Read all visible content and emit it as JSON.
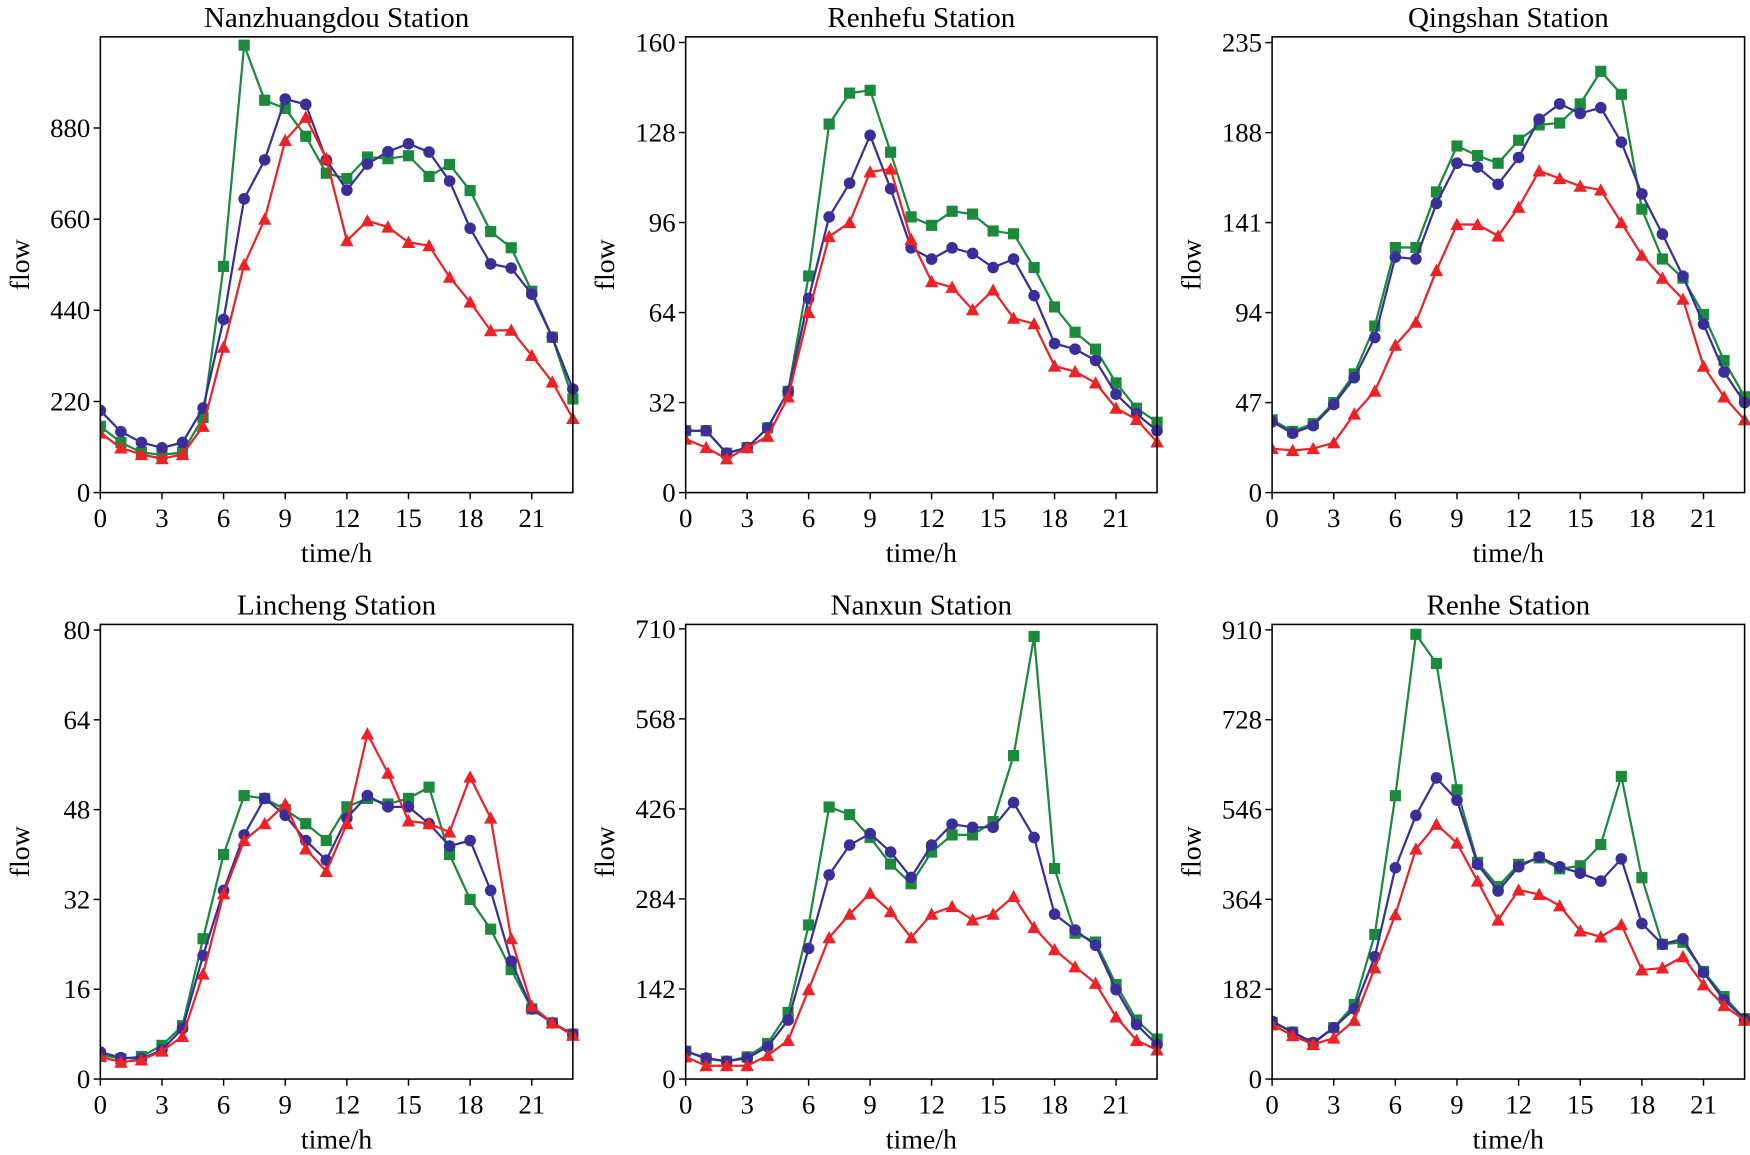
{
  "chart_data": [
    {
      "type": "line",
      "title": "Nanzhuangdou Station",
      "xlabel": "time/h",
      "ylabel": "flow",
      "xlim": [
        0,
        23
      ],
      "ylim": [
        0,
        1100
      ],
      "xticks": [
        "0",
        "3",
        "6",
        "9",
        "12",
        "15",
        "18",
        "21"
      ],
      "yticks": [
        "0",
        "220",
        "440",
        "660",
        "880"
      ],
      "x": [
        0,
        1,
        2,
        3,
        4,
        5,
        6,
        7,
        8,
        9,
        10,
        11,
        12,
        13,
        14,
        15,
        16,
        17,
        18,
        19,
        20,
        21,
        22,
        23
      ],
      "series": [
        {
          "color": "#1b8a3c",
          "marker": "square",
          "values": [
            160,
            121,
            97,
            91,
            97,
            181,
            546,
            1080,
            947,
            927,
            860,
            771,
            758,
            810,
            806,
            813,
            763,
            792,
            729,
            630,
            591,
            486,
            375,
            226
          ]
        },
        {
          "color": "#3a2f98",
          "marker": "circle",
          "values": [
            198,
            147,
            121,
            108,
            121,
            204,
            418,
            709,
            803,
            950,
            937,
            803,
            730,
            793,
            823,
            842,
            822,
            752,
            638,
            552,
            542,
            479,
            375,
            250
          ]
        },
        {
          "color": "#ec2227",
          "marker": "triangle",
          "values": [
            144,
            108,
            92,
            82,
            92,
            160,
            351,
            550,
            660,
            850,
            906,
            806,
            608,
            656,
            641,
            604,
            596,
            520,
            460,
            391,
            392,
            331,
            267,
            179
          ]
        }
      ]
    },
    {
      "type": "line",
      "title": "Renhefu Station",
      "xlabel": "time/h",
      "ylabel": "flow",
      "xlim": [
        0,
        23
      ],
      "ylim": [
        0,
        162
      ],
      "xticks": [
        "0",
        "3",
        "6",
        "9",
        "12",
        "15",
        "18",
        "21"
      ],
      "yticks": [
        "0",
        "32",
        "64",
        "96",
        "128",
        "160"
      ],
      "x": [
        0,
        1,
        2,
        3,
        4,
        5,
        6,
        7,
        8,
        9,
        10,
        11,
        12,
        13,
        14,
        15,
        16,
        17,
        18,
        19,
        20,
        21,
        22,
        23
      ],
      "series": [
        {
          "color": "#1b8a3c",
          "marker": "square",
          "values": [
            22,
            22,
            14,
            16,
            23,
            36,
            77,
            131,
            142,
            143,
            121,
            98,
            95,
            100,
            99,
            93,
            92,
            80,
            66,
            57,
            51,
            39,
            30,
            25
          ]
        },
        {
          "color": "#3a2f98",
          "marker": "circle",
          "values": [
            22,
            22,
            14,
            16,
            23,
            36,
            69,
            98,
            110,
            127,
            108,
            87,
            83,
            87,
            85,
            80,
            83,
            70,
            53,
            51,
            47,
            35,
            28,
            22
          ]
        },
        {
          "color": "#ec2227",
          "marker": "triangle",
          "values": [
            19,
            16,
            12,
            16,
            20,
            34,
            64,
            91,
            96,
            114,
            115,
            90,
            75,
            73,
            65,
            72,
            62,
            60,
            45,
            43,
            39,
            30,
            26,
            18
          ]
        }
      ]
    },
    {
      "type": "line",
      "title": "Qingshan Station",
      "xlabel": "time/h",
      "ylabel": "flow",
      "xlim": [
        0,
        23
      ],
      "ylim": [
        0,
        238
      ],
      "xticks": [
        "0",
        "3",
        "6",
        "9",
        "12",
        "15",
        "18",
        "21"
      ],
      "yticks": [
        "0",
        "47",
        "94",
        "141",
        "188",
        "235"
      ],
      "x": [
        0,
        1,
        2,
        3,
        4,
        5,
        6,
        7,
        8,
        9,
        10,
        11,
        12,
        13,
        14,
        15,
        16,
        17,
        18,
        19,
        20,
        21,
        22,
        23
      ],
      "series": [
        {
          "color": "#1b8a3c",
          "marker": "square",
          "values": [
            38,
            32,
            36,
            47,
            62,
            87,
            128,
            128,
            157,
            181,
            176,
            172,
            184,
            192,
            193,
            203,
            220,
            208,
            148,
            122,
            112,
            93,
            69,
            50
          ]
        },
        {
          "color": "#3a2f98",
          "marker": "circle",
          "values": [
            37,
            31,
            35,
            46,
            60,
            81,
            123,
            122,
            151,
            172,
            170,
            161,
            175,
            195,
            203,
            198,
            201,
            183,
            156,
            135,
            113,
            88,
            63,
            47
          ]
        },
        {
          "color": "#ec2227",
          "marker": "triangle",
          "values": [
            23,
            22,
            23,
            26,
            41,
            53,
            77,
            89,
            116,
            140,
            140,
            134,
            149,
            168,
            164,
            160,
            158,
            141,
            124,
            112,
            101,
            66,
            50,
            38
          ]
        }
      ]
    },
    {
      "type": "line",
      "title": "Lincheng Station",
      "xlabel": "time/h",
      "ylabel": "flow",
      "xlim": [
        0,
        23
      ],
      "ylim": [
        0,
        81
      ],
      "xticks": [
        "0",
        "3",
        "6",
        "9",
        "12",
        "15",
        "18",
        "21"
      ],
      "yticks": [
        "0",
        "16",
        "32",
        "48",
        "64",
        "80"
      ],
      "x": [
        0,
        1,
        2,
        3,
        4,
        5,
        6,
        7,
        8,
        9,
        10,
        11,
        12,
        13,
        14,
        15,
        16,
        17,
        18,
        19,
        20,
        21,
        22,
        23
      ],
      "series": [
        {
          "color": "#1b8a3c",
          "marker": "square",
          "values": [
            4.4,
            3.6,
            4,
            6,
            9.5,
            25,
            40,
            50.5,
            50,
            48,
            45.5,
            42.5,
            48.5,
            50,
            49,
            50,
            52,
            40,
            32,
            26.7,
            19.5,
            12.5,
            10,
            8
          ]
        },
        {
          "color": "#3a2f98",
          "marker": "circle",
          "values": [
            4.8,
            3.8,
            3.6,
            5.2,
            9,
            22,
            33.6,
            43.5,
            50,
            47,
            42.5,
            39,
            46.5,
            50.5,
            48.5,
            48.5,
            45.5,
            41.5,
            42.5,
            33.6,
            21,
            12.5,
            10,
            8
          ]
        },
        {
          "color": "#ec2227",
          "marker": "triangle",
          "values": [
            4,
            3,
            3.4,
            5,
            7.6,
            18.7,
            33,
            42.5,
            45.5,
            49,
            41,
            37,
            45.5,
            61.5,
            54.5,
            46,
            45.5,
            44,
            53.8,
            46.5,
            25,
            13,
            10,
            7.8
          ]
        }
      ]
    },
    {
      "type": "line",
      "title": "Nanxun Station",
      "xlabel": "time/h",
      "ylabel": "flow",
      "xlim": [
        0,
        23
      ],
      "ylim": [
        0,
        717
      ],
      "xticks": [
        "0",
        "3",
        "6",
        "9",
        "12",
        "15",
        "18",
        "21"
      ],
      "yticks": [
        "0",
        "142",
        "284",
        "426",
        "568",
        "710"
      ],
      "x": [
        0,
        1,
        2,
        3,
        4,
        5,
        6,
        7,
        8,
        9,
        10,
        11,
        12,
        13,
        14,
        15,
        16,
        17,
        18,
        19,
        20,
        21,
        22,
        23
      ],
      "series": [
        {
          "color": "#1b8a3c",
          "marker": "square",
          "values": [
            44,
            32,
            28,
            35,
            56,
            105,
            243,
            429,
            417,
            381,
            339,
            308,
            358,
            385,
            385,
            406,
            510,
            698,
            332,
            230,
            216,
            149,
            93,
            63
          ]
        },
        {
          "color": "#3a2f98",
          "marker": "circle",
          "values": [
            44,
            33,
            28,
            33,
            51,
            93,
            206,
            322,
            369,
            387,
            358,
            318,
            369,
            402,
            397,
            397,
            436,
            381,
            260,
            235,
            211,
            141,
            86,
            54
          ]
        },
        {
          "color": "#ec2227",
          "marker": "triangle",
          "values": [
            35,
            21,
            21,
            21,
            37,
            61,
            141,
            223,
            260,
            293,
            264,
            223,
            260,
            272,
            251,
            260,
            288,
            239,
            204,
            177,
            151,
            98,
            61,
            46
          ]
        }
      ]
    },
    {
      "type": "line",
      "title": "Renhe Station",
      "xlabel": "time/h",
      "ylabel": "flow",
      "xlim": [
        0,
        23
      ],
      "ylim": [
        0,
        921
      ],
      "xticks": [
        "0",
        "3",
        "6",
        "9",
        "12",
        "15",
        "18",
        "21"
      ],
      "yticks": [
        "0",
        "182",
        "364",
        "546",
        "728",
        "910"
      ],
      "x": [
        0,
        1,
        2,
        3,
        4,
        5,
        6,
        7,
        8,
        9,
        10,
        11,
        12,
        13,
        14,
        15,
        16,
        17,
        18,
        19,
        20,
        21,
        22,
        23
      ],
      "series": [
        {
          "color": "#1b8a3c",
          "marker": "square",
          "values": [
            115,
            95,
            72,
            104,
            151,
            293,
            574,
            901,
            842,
            586,
            439,
            390,
            435,
            448,
            426,
            432,
            475,
            613,
            408,
            273,
            277,
            218,
            167,
            122
          ]
        },
        {
          "color": "#3a2f98",
          "marker": "circle",
          "values": [
            117,
            95,
            74,
            104,
            142,
            248,
            428,
            534,
            610,
            565,
            435,
            381,
            430,
            450,
            430,
            417,
            401,
            446,
            315,
            273,
            284,
            216,
            160,
            122
          ]
        },
        {
          "color": "#ec2227",
          "marker": "triangle",
          "values": [
            110,
            88,
            70,
            83,
            119,
            225,
            333,
            466,
            516,
            478,
            401,
            322,
            383,
            374,
            351,
            300,
            288,
            313,
            221,
            225,
            248,
            191,
            149,
            119
          ]
        }
      ]
    }
  ]
}
